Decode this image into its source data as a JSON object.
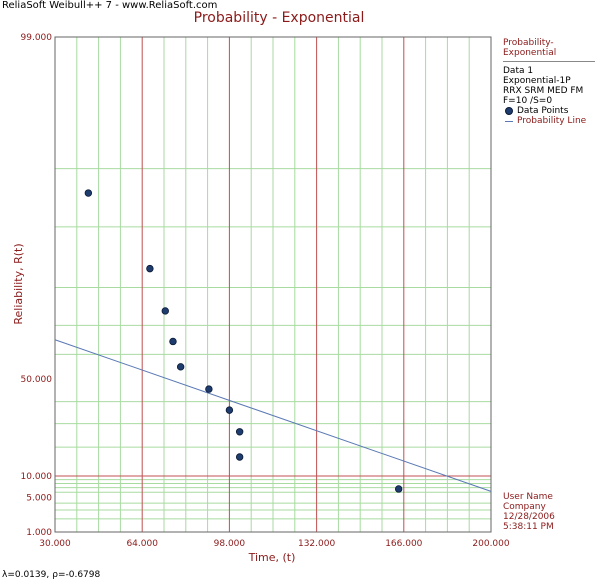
{
  "app": {
    "brand": "ReliaSoft Weibull++ 7 - www.ReliaSoft.com"
  },
  "chart_data": {
    "type": "scatter",
    "title": "Probability - Exponential",
    "xlabel": "Time, (t)",
    "ylabel": "Reliability, R(t)",
    "xlim": [
      30,
      200
    ],
    "ylim": [
      1,
      99
    ],
    "yscale": "log",
    "grid": true,
    "x_ticks": [
      "30.000",
      "64.000",
      "98.000",
      "132.000",
      "166.000",
      "200.000"
    ],
    "x_tick_values": [
      30,
      64,
      98,
      132,
      166,
      200
    ],
    "y_ticks": [
      "99.000",
      "50.000",
      "10.000",
      "5.000",
      "1.000"
    ],
    "y_tick_values": [
      99,
      50,
      10,
      5,
      1
    ],
    "series": [
      {
        "name": "Data Points",
        "kind": "points",
        "color": "#1f3c6e",
        "x": [
          43,
          67,
          73,
          76,
          79,
          90,
          98,
          102,
          102,
          164
        ],
        "y": [
          93.3,
          83.8,
          74.2,
          64.7,
          55.1,
          45.6,
          36.1,
          26.4,
          16.2,
          6.7
        ]
      },
      {
        "name": "Probability Line",
        "kind": "line",
        "color": "#5a78b4",
        "x": [
          30,
          200
        ],
        "y": [
          65.3,
          6.17
        ]
      }
    ],
    "legend": {
      "title": "Probability-Exponential",
      "lines": [
        "Data 1",
        "Exponential-1P",
        "RRX SRM MED FM",
        "F=10 /S=0"
      ],
      "placement": "right"
    },
    "info": [
      "User Name",
      "Company",
      "12/28/2006",
      "5:38:11 PM"
    ]
  },
  "footer": {
    "lambda": "λ=0.0139,",
    "rho": "ρ=-0.6798"
  }
}
